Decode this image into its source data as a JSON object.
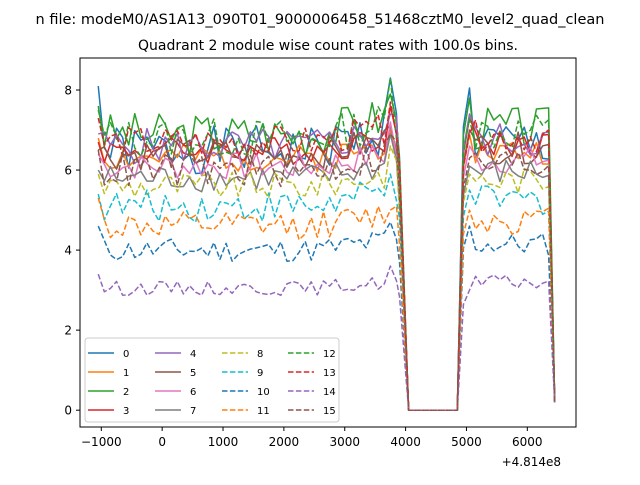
{
  "figure": {
    "suptitle": "n file: modeM0/AS1A13_090T01_9000006458_51468cztM0_level2_quad_clean",
    "title": "Quadrant 2 module wise count rates with 100.0s bins.",
    "x_offset_label": "+4.814e8"
  },
  "chart_data": {
    "type": "line",
    "title": "Quadrant 2 module wise count rates with 100.0s bins.",
    "xlabel": "",
    "ylabel": "",
    "x_offset": 481400000,
    "xlim": [
      -1350,
      6800
    ],
    "ylim": [
      -0.42,
      8.8
    ],
    "xticks": [
      -1000,
      0,
      1000,
      2000,
      3000,
      4000,
      5000,
      6000
    ],
    "xtick_labels": [
      "−1000",
      "0",
      "1000",
      "2000",
      "3000",
      "4000",
      "5000",
      "6000"
    ],
    "yticks": [
      0,
      2,
      4,
      6,
      8
    ],
    "ytick_labels": [
      "0",
      "2",
      "4",
      "6",
      "8"
    ],
    "grid": false,
    "legend": {
      "position": "lower-left",
      "columns": 4
    },
    "segments": [
      {
        "x_start": -1050,
        "x_end": 3850,
        "step": 100
      },
      {
        "x_start": 3900,
        "x_end": 3900,
        "step": 100
      },
      {
        "x_start": 4050,
        "x_end": 4850,
        "step": 100
      },
      {
        "x_start": 4950,
        "x_end": 6350,
        "step": 100
      },
      {
        "x_start": 6450,
        "x_end": 6450,
        "step": 100
      }
    ],
    "series": [
      {
        "name": "0",
        "color": "#1f77b4",
        "dash": "solid",
        "level": 6.5,
        "amplitude": 0.6,
        "first": 8.1,
        "peak": 8.3,
        "post_start": 8.05,
        "end_value": 0.25,
        "seed": 1
      },
      {
        "name": "1",
        "color": "#ff7f0e",
        "dash": "solid",
        "level": 6.3,
        "amplitude": 0.35,
        "first": 6.8,
        "peak": 7.0,
        "post_start": 6.9,
        "end_value": 0.25,
        "seed": 2
      },
      {
        "name": "2",
        "color": "#2ca02c",
        "dash": "solid",
        "level": 6.9,
        "amplitude": 0.55,
        "first": 7.6,
        "peak": 7.9,
        "post_start": 7.8,
        "end_value": 0.2,
        "seed": 3
      },
      {
        "name": "3",
        "color": "#d62728",
        "dash": "solid",
        "level": 6.5,
        "amplitude": 0.35,
        "first": 6.7,
        "peak": 7.6,
        "post_start": 7.3,
        "end_value": 0.2,
        "seed": 4
      },
      {
        "name": "4",
        "color": "#9467bd",
        "dash": "solid",
        "level": 6.6,
        "amplitude": 0.45,
        "first": 6.9,
        "peak": 7.4,
        "post_start": 7.4,
        "end_value": 0.2,
        "seed": 5
      },
      {
        "name": "5",
        "color": "#8c564b",
        "dash": "solid",
        "level": 6.4,
        "amplitude": 0.4,
        "first": 6.5,
        "peak": 7.1,
        "post_start": 7.0,
        "end_value": 0.2,
        "seed": 6
      },
      {
        "name": "6",
        "color": "#e377c2",
        "dash": "solid",
        "level": 6.1,
        "amplitude": 0.35,
        "first": 6.4,
        "peak": 7.2,
        "post_start": 6.6,
        "end_value": 0.2,
        "seed": 7
      },
      {
        "name": "7",
        "color": "#7f7f7f",
        "dash": "solid",
        "level": 5.8,
        "amplitude": 0.35,
        "first": 6.0,
        "peak": 6.9,
        "post_start": 6.1,
        "end_value": 0.2,
        "seed": 8
      },
      {
        "name": "8",
        "color": "#bcbd22",
        "dash": "dashed",
        "level": 5.6,
        "amplitude": 0.35,
        "first": 5.9,
        "peak": 6.6,
        "post_start": 5.9,
        "end_value": 0.2,
        "seed": 9
      },
      {
        "name": "9",
        "color": "#17becf",
        "dash": "dashed",
        "level": 5.1,
        "amplitude": 0.4,
        "first": 5.4,
        "peak": 5.9,
        "post_start": 5.5,
        "end_value": 0.2,
        "seed": 10
      },
      {
        "name": "10",
        "color": "#1f77b4",
        "dash": "dashed",
        "level": 4.0,
        "amplitude": 0.3,
        "first": 4.6,
        "peak": 4.7,
        "post_start": 4.6,
        "end_value": 0.2,
        "seed": 11
      },
      {
        "name": "11",
        "color": "#ff7f0e",
        "dash": "dashed",
        "level": 4.6,
        "amplitude": 0.35,
        "first": 5.3,
        "peak": 5.0,
        "post_start": 5.0,
        "end_value": 0.2,
        "seed": 12
      },
      {
        "name": "12",
        "color": "#2ca02c",
        "dash": "dashed",
        "level": 6.8,
        "amplitude": 0.5,
        "first": 7.5,
        "peak": 8.3,
        "post_start": 7.3,
        "end_value": 0.2,
        "seed": 13
      },
      {
        "name": "13",
        "color": "#d62728",
        "dash": "dashed",
        "level": 6.7,
        "amplitude": 0.4,
        "first": 7.3,
        "peak": 7.7,
        "post_start": 6.9,
        "end_value": 0.2,
        "seed": 14
      },
      {
        "name": "14",
        "color": "#9467bd",
        "dash": "dashed",
        "level": 3.05,
        "amplitude": 0.18,
        "first": 3.4,
        "peak": 3.6,
        "post_start": 3.0,
        "end_value": 0.2,
        "seed": 15
      },
      {
        "name": "15",
        "color": "#8c564b",
        "dash": "dashed",
        "level": 6.0,
        "amplitude": 0.45,
        "first": 6.5,
        "peak": 6.9,
        "post_start": 6.3,
        "end_value": 0.2,
        "seed": 16
      }
    ]
  }
}
